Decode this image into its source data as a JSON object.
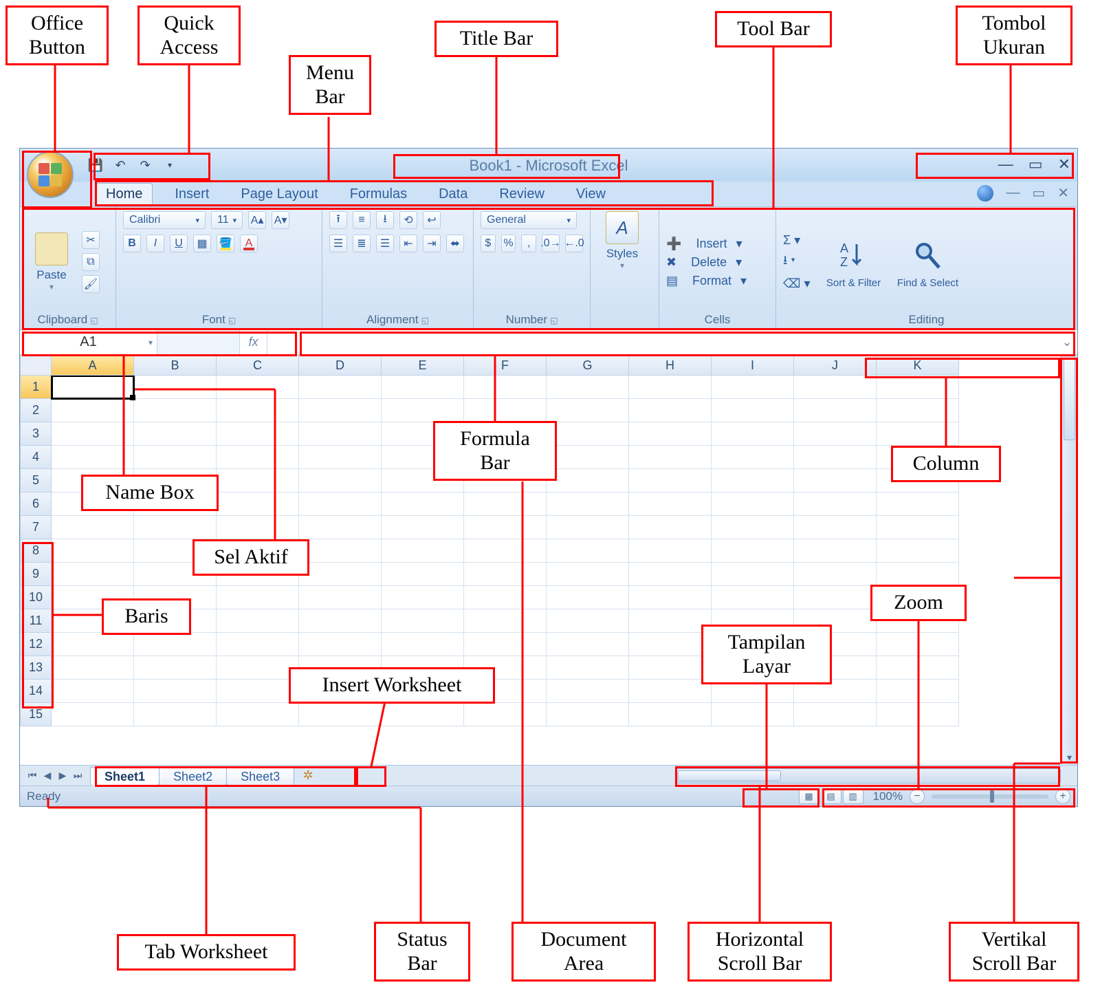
{
  "title": "Book1 - Microsoft Excel",
  "menu": [
    "Home",
    "Insert",
    "Page Layout",
    "Formulas",
    "Data",
    "Review",
    "View"
  ],
  "activeMenu": 0,
  "qa_icons": [
    "save",
    "undo",
    "redo"
  ],
  "ribbon": {
    "groups": [
      {
        "name": "Clipboard",
        "label": "Clipboard"
      },
      {
        "name": "Font",
        "label": "Font",
        "fontName": "Calibri",
        "fontSize": "11"
      },
      {
        "name": "Alignment",
        "label": "Alignment"
      },
      {
        "name": "Number",
        "label": "Number",
        "format": "General"
      },
      {
        "name": "Styles",
        "label": "Styles"
      },
      {
        "name": "Cells",
        "label": "Cells",
        "items": [
          "Insert",
          "Delete",
          "Format"
        ]
      },
      {
        "name": "Editing",
        "label": "Editing",
        "sort": "Sort & Filter",
        "find": "Find & Select"
      }
    ],
    "paste": "Paste",
    "styles": "Styles"
  },
  "nameBox": "A1",
  "columns": [
    "A",
    "B",
    "C",
    "D",
    "E",
    "F",
    "G",
    "H",
    "I",
    "J",
    "K"
  ],
  "activeCol": 0,
  "rows": [
    1,
    2,
    3,
    4,
    5,
    6,
    7,
    8,
    9,
    10,
    11,
    12,
    13,
    14,
    15
  ],
  "activeRow": 0,
  "sheets": [
    "Sheet1",
    "Sheet2",
    "Sheet3"
  ],
  "activeSheet": 0,
  "status": "Ready",
  "zoom": "100%",
  "callouts": {
    "officeButton": "Office Button",
    "quickAccess": "Quick Access",
    "menuBar": "Menu Bar",
    "titleBar": "Title Bar",
    "toolBar": "Tool Bar",
    "tombolUkuran": "Tombol Ukuran",
    "nameBox": "Name Box",
    "selAktif": "Sel Aktif",
    "formulaBar": "Formula Bar",
    "column": "Column",
    "baris": "Baris",
    "zoom": "Zoom",
    "tampilanLayar": "Tampilan Layar",
    "insertWorksheet": "Insert Worksheet",
    "tabWorksheet": "Tab Worksheet",
    "statusBar": "Status Bar",
    "documentArea": "Document Area",
    "hscroll": "Horizontal Scroll Bar",
    "vscroll": "Vertikal Scroll Bar"
  },
  "colors": {
    "red": "#ff0000",
    "ribbon_bg_top": "#e7f0fb",
    "ribbon_bg_bot": "#cfe1f4",
    "header_active": "#f7c85e",
    "accent": "#2d5e9e"
  }
}
